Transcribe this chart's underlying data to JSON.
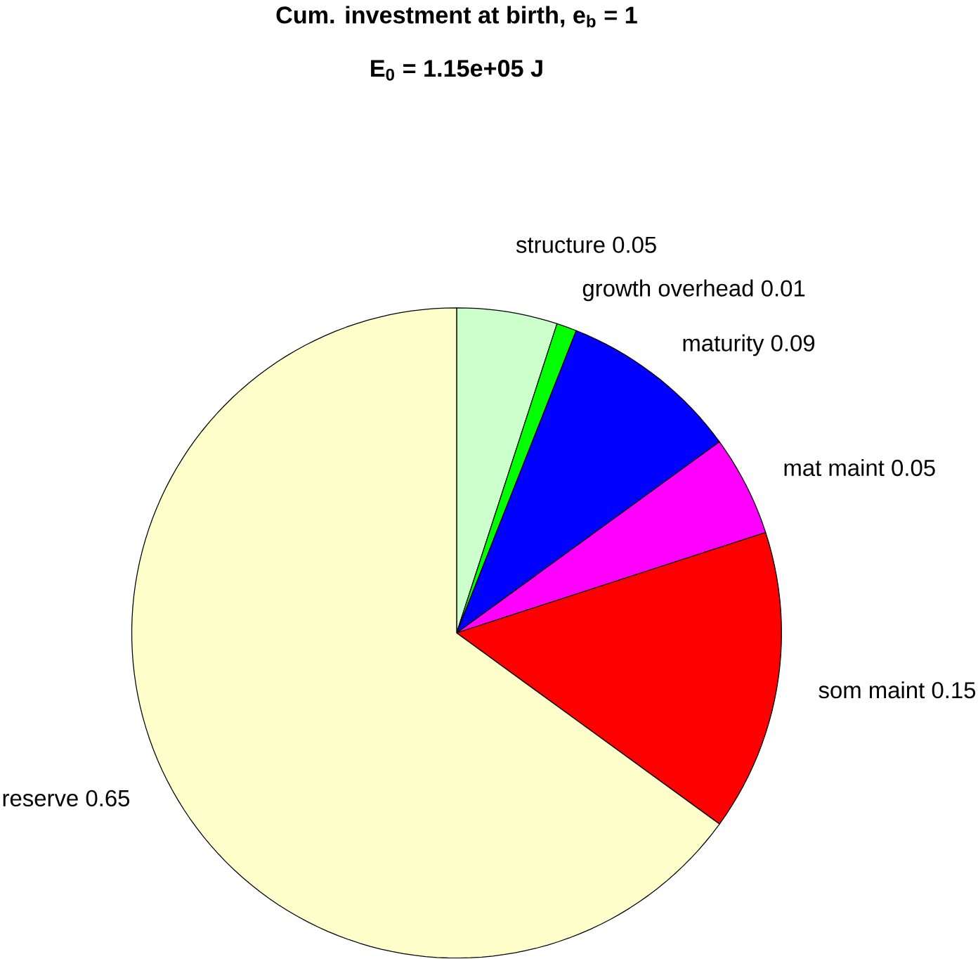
{
  "chart_data": {
    "type": "pie",
    "title": "Cum. investment at birth, e$_{b}$ = 1",
    "subtitle": "E$_{0}$ = 1.15e+05 J",
    "categories": [
      "structure",
      "growth overhead",
      "maturity",
      "mat maint",
      "som maint",
      "reserve"
    ],
    "values": [
      0.05,
      0.01,
      0.09,
      0.05,
      0.15,
      0.65
    ],
    "value_labels": [
      "0.05",
      "0.01",
      "0.09",
      "0.05",
      "0.15",
      "0.65"
    ],
    "colors": [
      "#ccffcc",
      "#00ff00",
      "#0000ff",
      "#ff00ff",
      "#ff0000",
      "#ffffcc"
    ]
  }
}
